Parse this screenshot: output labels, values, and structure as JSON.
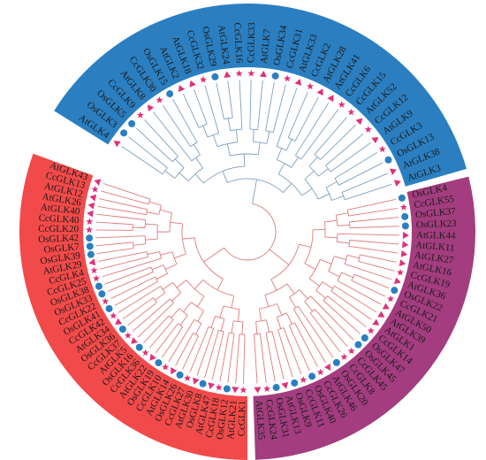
{
  "clades": [
    {
      "color": "#2b7fc1",
      "branch_color": "#7f9fbf",
      "leaves": [
        "AtGLK4",
        "OsGLK3",
        "OsGLK5",
        "CcGLK9",
        "AtGLK8",
        "CcGLK30",
        "OsGLK15",
        "AtGLK2",
        "AtGLK18",
        "CcGLK32",
        "OsGLK29",
        "AtGLK24",
        "CcGLK16",
        "CcGLK33",
        "AtGLK7",
        "OsGLK34",
        "CcGLK31",
        "AtGLK33",
        "CcGLK2",
        "AtGLK28",
        "AtGLK41",
        "CcGLK6",
        "CcGLK15",
        "AtGLK52",
        "CcGLK12",
        "AtGLK9",
        "CcGLK3",
        "OsGLK13",
        "AtGLK38",
        "AtGLK3"
      ]
    },
    {
      "color": "#a33d7f",
      "branch_color": "#e07a7a",
      "leaves": [
        "OsGLK4",
        "CcGLK55",
        "OsGLK37",
        "OsGLK23",
        "AtGLK44",
        "AtGLK11",
        "AtGLK27",
        "AtGLK16",
        "CcGLK19",
        "AtGLK36",
        "OsGLK22",
        "CcGLK21",
        "AtGLK50",
        "AtGLK39",
        "AtGLK1",
        "CcGLK14",
        "OsGLK47",
        "OsGLK45",
        "CcGLK45",
        "CcGLK8",
        "OsGLK20",
        "AtGLK46",
        "CcGLK26",
        "OsGLK40",
        "CcGLK11",
        "OsGLK9",
        "AtGLK13",
        "OsGLK31",
        "CcGLK24",
        "AtGLK35"
      ]
    },
    {
      "color": "#f24a4a",
      "branch_color": "#e07a7a",
      "leaves": [
        "CcGLK1",
        "AtGLK21",
        "OsGLK12",
        "CcGLK18",
        "AtGLK47",
        "OsGLK8",
        "AtGLK30",
        "CcGLK27",
        "OsGLK26",
        "AtGLK14",
        "CcGLK10",
        "OsGLK19",
        "AtGLK22",
        "CcGLK36",
        "OsGLK16",
        "AtGLK5",
        "CcGLK37",
        "OsGLK36",
        "AtGLK34",
        "CcGLK42",
        "OsGLK41",
        "CcGLK22",
        "OsGLK33",
        "OsGLK38",
        "CcGLK25",
        "CcGLK4",
        "AtGLK29",
        "OsGLK39",
        "OsGLK7",
        "OsGLK42",
        "CcGLK20",
        "CcGLK40",
        "AtGLK40",
        "AtGLK26",
        "AtGLK12",
        "CcGLK13",
        "AtGLK43"
      ]
    }
  ]
}
